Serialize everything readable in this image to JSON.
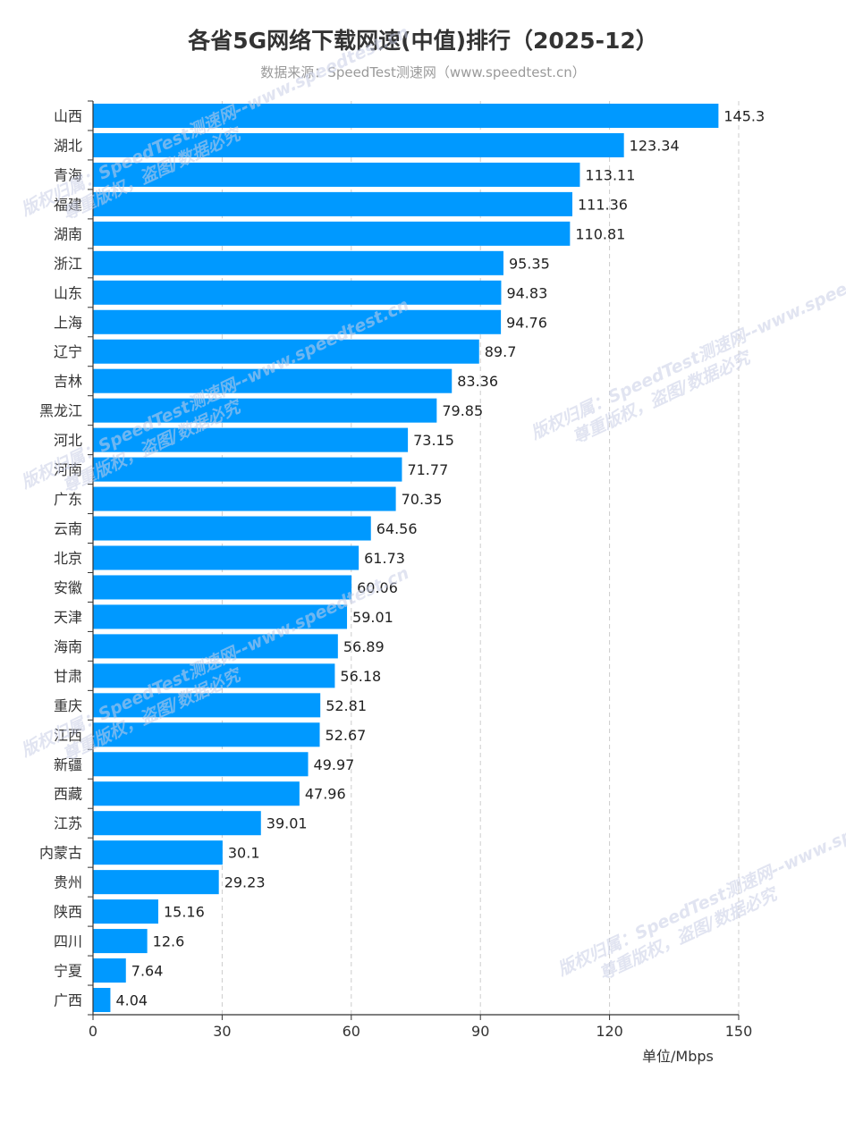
{
  "header": {
    "title": "各省5G网络下载网速(中值)排行（2025-12）",
    "subtitle": "数据来源：SpeedTest测速网（www.speedtest.cn）"
  },
  "watermark": {
    "line1": "版权归属：SpeedTest测速网--www.speedtest.cn",
    "line2": "尊重版权，盗图/数据必究"
  },
  "axis": {
    "unit_label": "单位/Mbps"
  },
  "colors": {
    "bar": "#0099ff",
    "text": "#333333",
    "grid": "#cccccc"
  },
  "chart_data": {
    "type": "bar",
    "orientation": "horizontal",
    "title": "各省5G网络下载网速(中值)排行（2025-12）",
    "xlabel": "单位/Mbps",
    "xlim": [
      0,
      150
    ],
    "xticks": [
      0,
      30,
      60,
      90,
      120,
      150
    ],
    "grid": true,
    "categories": [
      "山西",
      "湖北",
      "青海",
      "福建",
      "湖南",
      "浙江",
      "山东",
      "上海",
      "辽宁",
      "吉林",
      "黑龙江",
      "河北",
      "河南",
      "广东",
      "云南",
      "北京",
      "安徽",
      "天津",
      "海南",
      "甘肃",
      "重庆",
      "江西",
      "新疆",
      "西藏",
      "江苏",
      "内蒙古",
      "贵州",
      "陕西",
      "四川",
      "宁夏",
      "广西"
    ],
    "values": [
      145.3,
      123.34,
      113.11,
      111.36,
      110.81,
      95.35,
      94.83,
      94.76,
      89.7,
      83.36,
      79.85,
      73.15,
      71.77,
      70.35,
      64.56,
      61.73,
      60.06,
      59.01,
      56.89,
      56.18,
      52.81,
      52.67,
      49.97,
      47.96,
      39.01,
      30.1,
      29.23,
      15.16,
      12.6,
      7.64,
      4.04
    ]
  }
}
